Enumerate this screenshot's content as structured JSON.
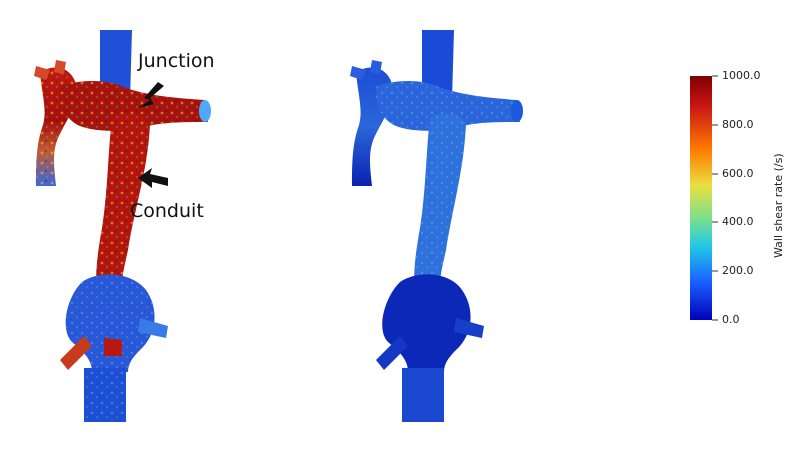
{
  "annotations": {
    "junction": "Junction",
    "conduit": "Conduit"
  },
  "colorbar": {
    "title": "Wall shear rate (/s)",
    "ticks": [
      "1000.0",
      "800.0",
      "600.0",
      "400.0",
      "200.0",
      "0.0"
    ],
    "min": 0,
    "max": 1000,
    "colors": [
      "#7f0000",
      "#c81414",
      "#ff7a00",
      "#e8e040",
      "#7ee08a",
      "#20c8e8",
      "#1a5cff",
      "#0000b8"
    ]
  },
  "panels": {
    "left": {
      "description_colormap": "high-wall-shear"
    },
    "right": {
      "description_colormap": "low-wall-shear"
    }
  }
}
